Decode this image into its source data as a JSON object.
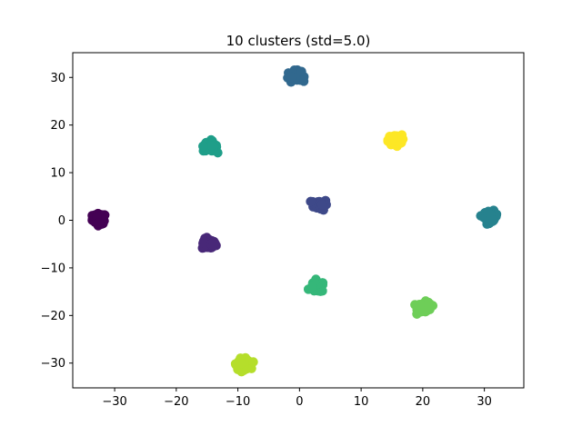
{
  "chart_data": {
    "type": "scatter",
    "title": "10 clusters (std=5.0)",
    "xlabel": "",
    "ylabel": "",
    "xlim": [
      -36.8,
      36.4
    ],
    "ylim": [
      -35.2,
      35.2
    ],
    "xticks": [
      -30,
      -20,
      -10,
      0,
      10,
      20,
      30
    ],
    "xtick_labels": [
      "−30",
      "−20",
      "−10",
      "0",
      "10",
      "20",
      "30"
    ],
    "yticks": [
      -30,
      -20,
      -10,
      0,
      10,
      20,
      30
    ],
    "ytick_labels": [
      "−30",
      "−20",
      "−10",
      "0",
      "10",
      "20",
      "30"
    ],
    "grid": false,
    "colormap": "viridis",
    "clusters": [
      {
        "label": 0,
        "center": [
          -32.5,
          0.3
        ],
        "color": "#440154"
      },
      {
        "label": 1,
        "center": [
          -14.7,
          -5.0
        ],
        "color": "#482878"
      },
      {
        "label": 2,
        "center": [
          3.4,
          3.3
        ],
        "color": "#3e4989"
      },
      {
        "label": 3,
        "center": [
          -0.8,
          30.3
        ],
        "color": "#31688e"
      },
      {
        "label": 4,
        "center": [
          31.0,
          0.8
        ],
        "color": "#26828e"
      },
      {
        "label": 5,
        "center": [
          -14.5,
          15.6
        ],
        "color": "#1f9e89"
      },
      {
        "label": 6,
        "center": [
          2.9,
          -14.0
        ],
        "color": "#35b779"
      },
      {
        "label": 7,
        "center": [
          20.3,
          -18.3
        ],
        "color": "#6ece58"
      },
      {
        "label": 8,
        "center": [
          -9.1,
          -30.2
        ],
        "color": "#b5de2b"
      },
      {
        "label": 9,
        "center": [
          15.5,
          16.8
        ],
        "color": "#fde725"
      }
    ]
  }
}
